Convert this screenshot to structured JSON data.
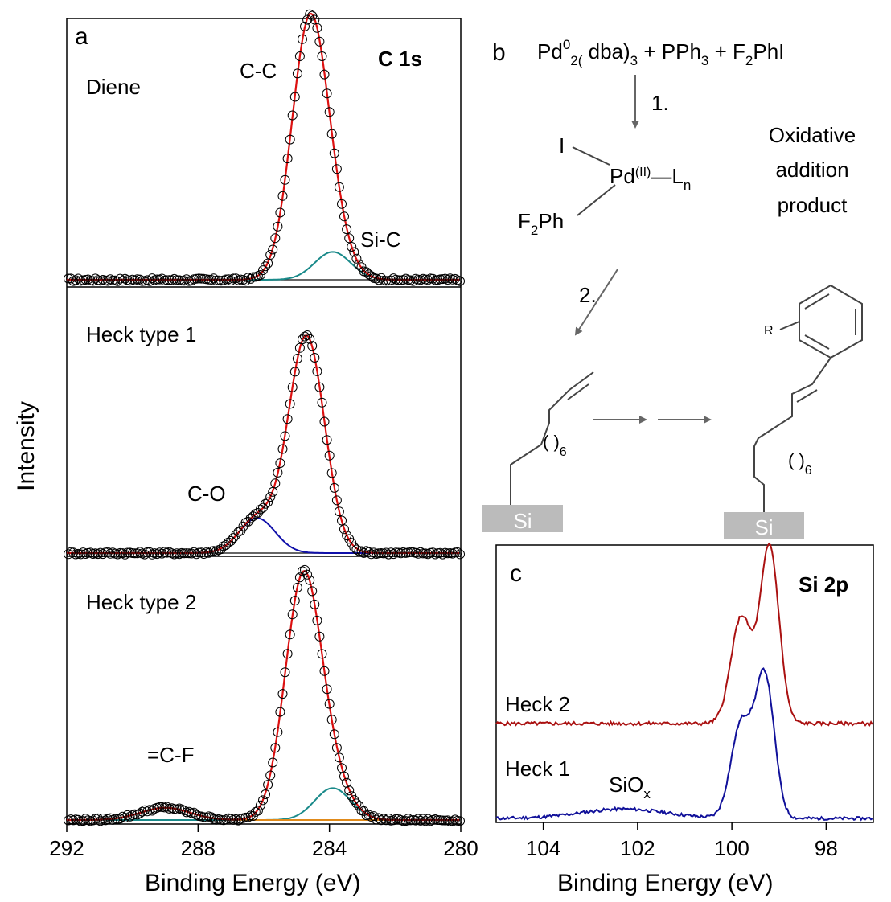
{
  "colors": {
    "fit_total": "#dd1111",
    "component_sic": "#1a8a8a",
    "component_co": "#1111aa",
    "component_cf": "#e08a1a",
    "heck2_line": "#aa1111",
    "heck1_line": "#11119a",
    "arrow": "#666666",
    "si_block": "#bbbbbb"
  },
  "panel_a": {
    "letter": "a",
    "core_level": "C 1s",
    "xlabel": "Binding Energy (eV)",
    "ylabel": "Intensity",
    "subpanels": {
      "diene": {
        "name": "Diene",
        "main_peak": "C-C",
        "side_peak": "Si-C"
      },
      "heck1": {
        "name": "Heck type 1",
        "side_peak": "C-O"
      },
      "heck2": {
        "name": "Heck type 2",
        "side_peak": "=C-F"
      }
    }
  },
  "panel_b": {
    "letter": "b",
    "reagents": {
      "pd": "Pd",
      "pd_sup": "0",
      "pd_sub": "2(",
      "dba": " dba)",
      "dba_sub": "3",
      "pph": " + PPh",
      "pph_sub": "3",
      "f2": " + F",
      "f2_sub": "2",
      "phi": "PhI"
    },
    "step1": "1.",
    "step2": "2.",
    "complex": {
      "iodine": "I",
      "pd": "Pd",
      "pd_sup": "(II)",
      "ligand": "—L",
      "ligand_sub": "n",
      "aryl": "F",
      "aryl_sub": "2",
      "aryl_ph": "Ph"
    },
    "oxidative_addition": [
      "Oxidative",
      "addition",
      "product"
    ],
    "chain_paren": "( )",
    "chain_sub": "6",
    "r_group": "R",
    "si_label": "Si"
  },
  "panel_c": {
    "letter": "c",
    "core_level": "Si 2p",
    "xlabel": "Binding Energy (eV)",
    "heck2_label": "Heck 2",
    "heck1_label": "Heck 1",
    "siox": "SiO",
    "siox_sub": "x"
  },
  "chart_data": [
    {
      "type": "line",
      "title": "C 1s",
      "panel": "a",
      "xlabel": "Binding Energy (eV)",
      "ylabel": "Intensity",
      "xlim": [
        292,
        280
      ],
      "x_reversed": true,
      "xticks": [
        292,
        288,
        284,
        280
      ],
      "subplots": [
        {
          "name": "Diene",
          "components": [
            {
              "label": "C-C",
              "center_eV": 284.6,
              "height": 1.0
            },
            {
              "label": "Si-C",
              "center_eV": 283.9,
              "height": 0.11
            }
          ]
        },
        {
          "name": "Heck type 1",
          "components": [
            {
              "label": "C-C",
              "center_eV": 284.7,
              "height": 0.93
            },
            {
              "label": "C-O",
              "center_eV": 286.2,
              "height": 0.15
            }
          ]
        },
        {
          "name": "Heck type 2",
          "components": [
            {
              "label": "C-C",
              "center_eV": 284.8,
              "height": 0.98
            },
            {
              "label": "Si-C",
              "center_eV": 283.9,
              "height": 0.13
            },
            {
              "label": "=C-F",
              "center_eV": 289.0,
              "height": 0.05
            }
          ]
        }
      ]
    },
    {
      "type": "line",
      "title": "Si 2p",
      "panel": "c",
      "xlabel": "Binding Energy (eV)",
      "xlim": [
        105,
        97
      ],
      "x_reversed": true,
      "xticks": [
        104,
        102,
        100,
        98
      ],
      "series": [
        {
          "name": "Heck 2",
          "peaks_eV": [
            99.8,
            99.2
          ],
          "peak_heights": [
            0.6,
            1.0
          ]
        },
        {
          "name": "Heck 1",
          "peaks_eV": [
            99.8,
            99.3
          ],
          "peak_heights": [
            0.6,
            0.9
          ],
          "broad_peak": {
            "label": "SiOx",
            "center_eV": 102.3
          }
        }
      ]
    }
  ]
}
